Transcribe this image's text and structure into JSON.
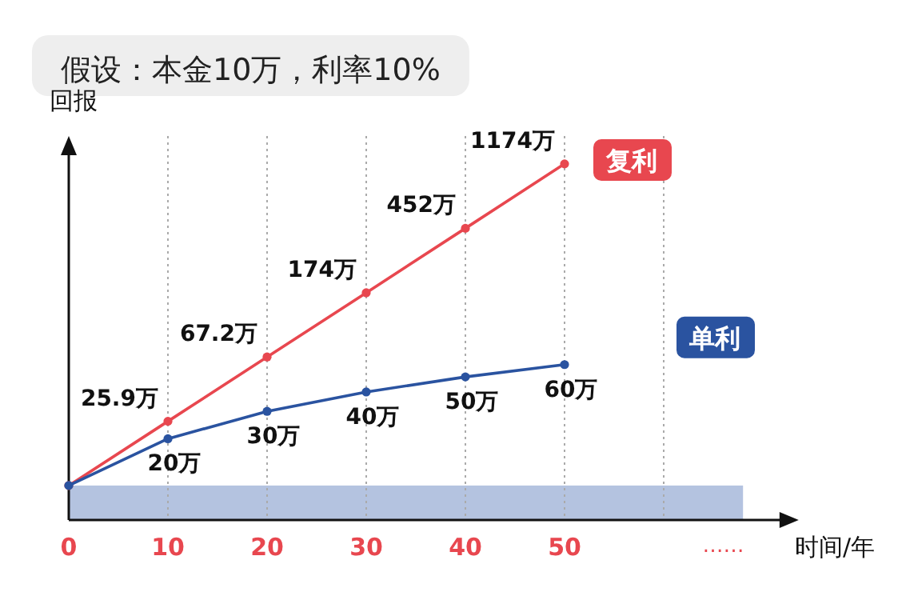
{
  "chart_data": {
    "type": "line",
    "title": "假设：本金10万，利率10%",
    "xlabel": "时间/年",
    "ylabel": "回报",
    "x": [
      0,
      10,
      20,
      30,
      40,
      50
    ],
    "series": [
      {
        "name": "复利",
        "color": "#e8474f",
        "values": [
          10,
          25.9,
          67.2,
          174,
          452,
          1174
        ],
        "value_labels": [
          null,
          "25.9万",
          "67.2万",
          "174万",
          "452万",
          "1174万"
        ]
      },
      {
        "name": "单利",
        "color": "#2a53a0",
        "values": [
          10,
          20,
          30,
          40,
          50,
          60
        ],
        "value_labels": [
          null,
          "20万",
          "30万",
          "40万",
          "50万",
          "60万"
        ]
      }
    ],
    "xlim": [
      0,
      72
    ],
    "ylim": [
      6,
      1400
    ],
    "log": "y",
    "xticks": [
      0,
      10,
      20,
      30,
      40,
      50,
      {
        "value": 60,
        "label": null
      }
    ],
    "grid": "x",
    "marker": "circle",
    "line_style": "solid",
    "tick_labels": "x",
    "bands": [
      {
        "axis": "y",
        "from": 6,
        "to": 10,
        "color": "#b4c3e0"
      }
    ],
    "annotations": [
      "……"
    ]
  }
}
